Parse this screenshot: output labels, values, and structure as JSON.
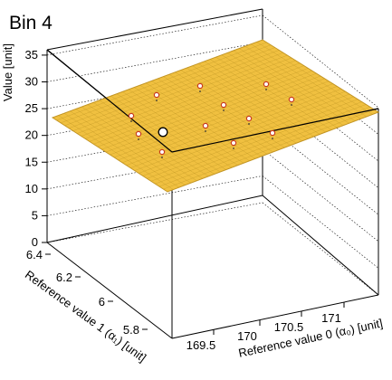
{
  "chart_data": {
    "type": "surface3d",
    "title": "Bin 4",
    "zlabel": "Value [unit]",
    "ylabel": "Reference value 1 (α₁) [unit]",
    "xlabel": "Reference value 0 (α₀) [unit]",
    "zlim": [
      0,
      36
    ],
    "z_ticks": [
      "0",
      "5",
      "10",
      "15",
      "20",
      "25",
      "30",
      "35"
    ],
    "x_ticks": [
      "169.5",
      "170",
      "170.5",
      "171"
    ],
    "y_ticks": [
      "5.8",
      "6",
      "6.2",
      "6.4"
    ],
    "surface_color": "#f0c040",
    "surface_edge_color": "#b89020",
    "marker_fill": "#ffffff",
    "marker_edge": "#c83a1e",
    "points": [
      {
        "x": 169.55,
        "y": 6.5,
        "z": 27.8
      },
      {
        "x": 169.55,
        "y": 6.35,
        "z": 22.8
      },
      {
        "x": 169.6,
        "y": 6.2,
        "z": 19.5
      },
      {
        "x": 169.8,
        "y": 6.4,
        "z": 30.0
      },
      {
        "x": 169.85,
        "y": 6.2,
        "z": 22.0
      },
      {
        "x": 170.05,
        "y": 6.4,
        "z": 29.0
      },
      {
        "x": 170.1,
        "y": 6.25,
        "z": 24.0
      },
      {
        "x": 170.3,
        "y": 6.15,
        "z": 21.5
      },
      {
        "x": 170.5,
        "y": 6.4,
        "z": 29.5
      },
      {
        "x": 170.4,
        "y": 6.3,
        "z": 25.0
      },
      {
        "x": 170.6,
        "y": 6.2,
        "z": 23.0
      },
      {
        "x": 170.8,
        "y": 6.4,
        "z": 28.5
      }
    ],
    "highlight_point": {
      "x": 169.5,
      "y": 6.3,
      "z": 22.0
    }
  }
}
